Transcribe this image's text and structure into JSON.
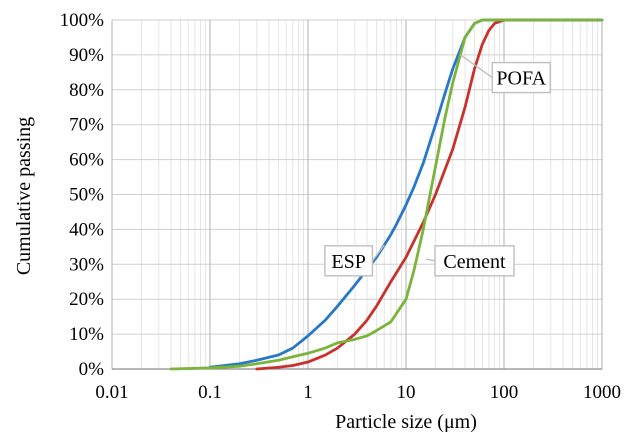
{
  "chart_data": {
    "type": "line",
    "xlabel": "Particle size (μm)",
    "ylabel": "Cumulative passing",
    "xscale": "log",
    "xlim": [
      0.01,
      1000
    ],
    "ylim": [
      0,
      100
    ],
    "x_ticks": [
      {
        "value": 0.01,
        "label": "0.01"
      },
      {
        "value": 0.1,
        "label": "0.1"
      },
      {
        "value": 1,
        "label": "1"
      },
      {
        "value": 10,
        "label": "10"
      },
      {
        "value": 100,
        "label": "100"
      },
      {
        "value": 1000,
        "label": "1000"
      }
    ],
    "y_ticks": [
      {
        "value": 0,
        "label": "0%"
      },
      {
        "value": 10,
        "label": "10%"
      },
      {
        "value": 20,
        "label": "20%"
      },
      {
        "value": 30,
        "label": "30%"
      },
      {
        "value": 40,
        "label": "40%"
      },
      {
        "value": 50,
        "label": "50%"
      },
      {
        "value": 60,
        "label": "60%"
      },
      {
        "value": 70,
        "label": "70%"
      },
      {
        "value": 80,
        "label": "80%"
      },
      {
        "value": 90,
        "label": "90%"
      },
      {
        "value": 100,
        "label": "100%"
      }
    ],
    "grid": {
      "major": true,
      "minor": true
    },
    "legend": "none",
    "series": [
      {
        "name": "ESP",
        "color": "#2878C8",
        "points": [
          [
            0.1,
            0.5
          ],
          [
            0.2,
            1.5
          ],
          [
            0.3,
            2.5
          ],
          [
            0.5,
            4
          ],
          [
            0.7,
            6
          ],
          [
            1,
            9.5
          ],
          [
            1.5,
            14
          ],
          [
            2,
            18
          ],
          [
            3,
            24
          ],
          [
            4,
            28.5
          ],
          [
            5,
            32
          ],
          [
            6,
            35.5
          ],
          [
            7,
            38.5
          ],
          [
            8,
            41.5
          ],
          [
            10,
            47
          ],
          [
            12,
            52
          ],
          [
            15,
            59
          ],
          [
            20,
            70
          ],
          [
            25,
            79
          ],
          [
            30,
            86
          ],
          [
            40,
            95
          ],
          [
            50,
            99
          ],
          [
            60,
            100
          ],
          [
            100,
            100
          ],
          [
            1000,
            100
          ]
        ]
      },
      {
        "name": "POFA",
        "color": "#7AB43A",
        "points": [
          [
            0.04,
            0
          ],
          [
            0.1,
            0.3
          ],
          [
            0.2,
            0.8
          ],
          [
            0.3,
            1.5
          ],
          [
            0.5,
            2.5
          ],
          [
            0.7,
            3.5
          ],
          [
            1,
            4.5
          ],
          [
            1.5,
            6
          ],
          [
            2,
            7.5
          ],
          [
            3,
            8.5
          ],
          [
            4,
            9.5
          ],
          [
            5,
            11
          ],
          [
            7,
            13.5
          ],
          [
            10,
            20
          ],
          [
            12,
            28
          ],
          [
            15,
            40
          ],
          [
            20,
            58
          ],
          [
            25,
            72
          ],
          [
            30,
            82
          ],
          [
            40,
            95
          ],
          [
            50,
            99
          ],
          [
            60,
            100
          ],
          [
            100,
            100
          ],
          [
            1000,
            100
          ]
        ]
      },
      {
        "name": "Cement",
        "color": "#C8322D",
        "points": [
          [
            0.3,
            0
          ],
          [
            0.5,
            0.5
          ],
          [
            0.7,
            1
          ],
          [
            1,
            2
          ],
          [
            1.5,
            4
          ],
          [
            2,
            6
          ],
          [
            3,
            10
          ],
          [
            4,
            14
          ],
          [
            5,
            18
          ],
          [
            7,
            25
          ],
          [
            10,
            32
          ],
          [
            15,
            42
          ],
          [
            20,
            50
          ],
          [
            30,
            63
          ],
          [
            40,
            75
          ],
          [
            50,
            86
          ],
          [
            60,
            93
          ],
          [
            70,
            97
          ],
          [
            80,
            99
          ],
          [
            100,
            100
          ],
          [
            1000,
            100
          ]
        ]
      }
    ],
    "annotations": [
      {
        "text": "ESP",
        "series": "ESP",
        "label_at": [
          2.6,
          31
        ],
        "point_at": [
          6,
          35.5
        ]
      },
      {
        "text": "POFA",
        "series": "POFA",
        "label_at": [
          150,
          83.5
        ],
        "point_at": [
          36,
          90
        ]
      },
      {
        "text": "Cement",
        "series": "POFA",
        "label_at": [
          50,
          31
        ],
        "point_at": [
          16,
          31.5
        ]
      }
    ]
  }
}
